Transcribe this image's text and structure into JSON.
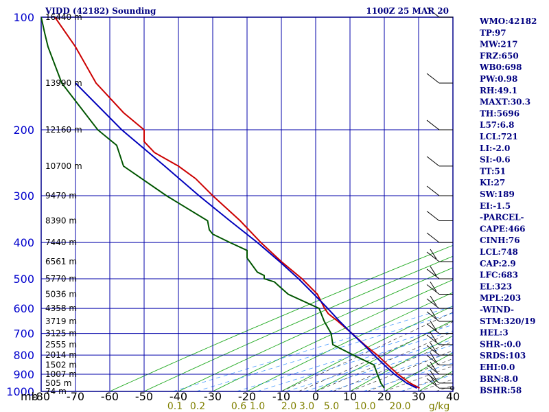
{
  "header": {
    "title": "VIDD (42182) Sounding",
    "datetime": "1100Z 25 MAR 20"
  },
  "indices": [
    "WMO:42182",
    "TP:97",
    "MW:217",
    "FRZ:650",
    "WB0:698",
    "PW:0.98",
    "RH:49.1",
    "MAXT:30.3",
    "TH:5696",
    "L57:6.8",
    "LCL:721",
    "LI:-2.0",
    "SI:-0.6",
    "TT:51",
    "KI:27",
    "SW:189",
    "EI:-1.5",
    "-PARCEL-",
    "CAPE:466",
    "CINH:76",
    "LCL:748",
    "CAP:2.9",
    "LFC:683",
    "EL:323",
    "MPL:203",
    "-WIND-",
    "STM:320/19",
    "HEL:3",
    "SHR-:0.0",
    "SRDS:103",
    "EHI:0.0",
    "BRN:8.0",
    "BSHR:58"
  ],
  "colors": {
    "frame": "#00008b",
    "isobar": "#0000aa",
    "isotherm": "#0000aa",
    "dry_adiabat": "#22aa22",
    "moist_adiabat": "#333333",
    "mixing_ratio": "#4499ff",
    "temperature": "#cc0000",
    "dewpoint": "#005500",
    "parcel": "#0000bb",
    "wind_barb": "#000000"
  },
  "chart_data": {
    "type": "skew-t",
    "pressure_unit_label": "mb",
    "pressure_levels": [
      100,
      200,
      300,
      400,
      500,
      600,
      700,
      800,
      900,
      1000
    ],
    "pressure_tick_labels": [
      "100",
      "200",
      "300",
      "400",
      "500",
      "600",
      "700",
      "800",
      "900",
      "1000"
    ],
    "height_labels": [
      {
        "p": 100,
        "text": "16440 m"
      },
      {
        "p": 150,
        "text": "13990 m"
      },
      {
        "p": 200,
        "text": "12160 m"
      },
      {
        "p": 250,
        "text": "10700 m"
      },
      {
        "p": 300,
        "text": "9470 m"
      },
      {
        "p": 350,
        "text": "8390 m"
      },
      {
        "p": 400,
        "text": "7440 m"
      },
      {
        "p": 450,
        "text": "6561 m"
      },
      {
        "p": 500,
        "text": "5770 m"
      },
      {
        "p": 550,
        "text": "5036 m"
      },
      {
        "p": 600,
        "text": "4358 m"
      },
      {
        "p": 650,
        "text": "3719 m"
      },
      {
        "p": 700,
        "text": "3125 m"
      },
      {
        "p": 750,
        "text": "2555 m"
      },
      {
        "p": 800,
        "text": "2014 m"
      },
      {
        "p": 850,
        "text": "1502 m"
      },
      {
        "p": 900,
        "text": "1007 m"
      },
      {
        "p": 950,
        "text": "505 m"
      },
      {
        "p": 1000,
        "text": "74 m"
      }
    ],
    "temperature_ticks": [
      -80,
      -70,
      -60,
      -50,
      -40,
      -30,
      -20,
      -10,
      0,
      10,
      20,
      30,
      40
    ],
    "temperature_tick_labels": [
      "-80",
      "-70",
      "-60",
      "-50",
      "-40",
      "-30",
      "-20",
      "-10",
      "0",
      "10",
      "20",
      "30",
      "40"
    ],
    "mixing_ratio_labels": [
      "0.1",
      "0.2",
      "0.6",
      "1.0",
      "2.0",
      "3.0",
      "5.0",
      "10.0",
      "20.0",
      "g/kg"
    ],
    "xlim": [
      -80,
      40
    ],
    "ylim": [
      100,
      1000
    ],
    "series": [
      {
        "name": "temperature",
        "p": [
          980,
          950,
          900,
          850,
          800,
          750,
          700,
          650,
          620,
          600,
          550,
          500,
          450,
          400,
          350,
          300,
          270,
          250,
          230,
          215,
          200,
          180,
          150,
          120,
          100
        ],
        "t": [
          30.3,
          27.5,
          24.0,
          21.0,
          18.0,
          14.2,
          10.6,
          6.5,
          3.7,
          2.6,
          0.5,
          -4.0,
          -10.0,
          -16.0,
          -22.0,
          -30.0,
          -35.0,
          -40.0,
          -47.0,
          -50.0,
          -50.0,
          -56.0,
          -64.0,
          -70.0,
          -76.0
        ]
      },
      {
        "name": "dewpoint",
        "p": [
          980,
          950,
          900,
          850,
          800,
          750,
          700,
          650,
          600,
          550,
          520,
          510,
          500,
          490,
          480,
          440,
          420,
          400,
          380,
          370,
          350,
          300,
          250,
          220,
          200,
          150,
          120,
          110,
          100
        ],
        "t": [
          20.0,
          19.0,
          18.0,
          17.0,
          11.0,
          5.0,
          4.5,
          2.5,
          1.0,
          -8.0,
          -11.0,
          -12.0,
          -15.0,
          -15.0,
          -17.0,
          -20.0,
          -20.0,
          -25.0,
          -30.0,
          -31.0,
          -31.5,
          -43.5,
          -56.0,
          -58.0,
          -63.5,
          -74.0,
          -78.0,
          -79.0,
          -80.0
        ]
      },
      {
        "name": "parcel",
        "p": [
          980,
          950,
          900,
          850,
          800,
          750,
          700,
          650,
          600,
          550,
          500,
          450,
          400,
          350,
          300,
          250,
          200,
          150
        ],
        "t": [
          29.5,
          26.5,
          23.0,
          20.0,
          17.0,
          14.0,
          10.5,
          7.0,
          3.5,
          -0.5,
          -5.0,
          -10.5,
          -17.0,
          -25.0,
          -34.0,
          -44.0,
          -56.5,
          -70.0
        ]
      }
    ],
    "wind_levels": [
      980,
      950,
      900,
      850,
      800,
      750,
      700,
      650,
      600,
      550,
      500,
      450,
      400,
      350,
      300,
      250,
      200,
      150,
      100
    ],
    "grid": true
  }
}
